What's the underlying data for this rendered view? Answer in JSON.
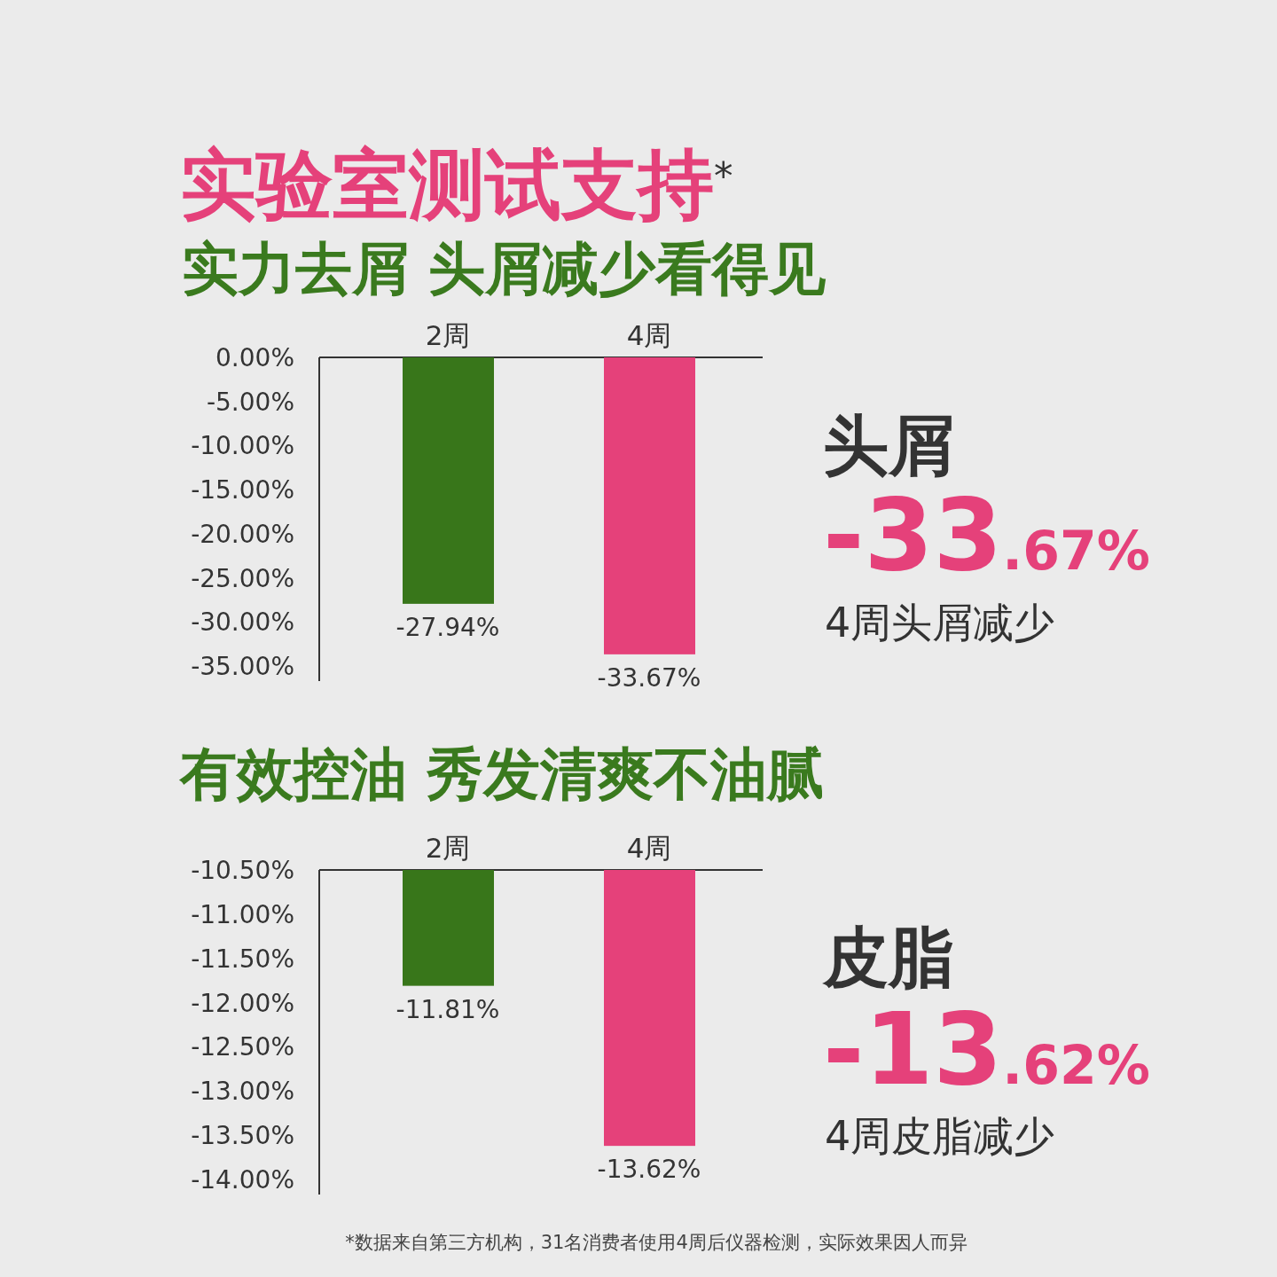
{
  "chart_data": [
    {
      "type": "bar",
      "title": "实验室测试支持$^{*}$",
      "subtitle": "实力去屑 头屑减少看得见",
      "categories": [
        "2周",
        "4周"
      ],
      "values": [
        -27.94,
        -33.67
      ],
      "colors": [
        "#38761a",
        "#e5417a"
      ],
      "value_labels": [
        "-27.94%",
        "-33.67%"
      ],
      "ylim": [
        -36.7,
        0
      ],
      "yticks": [
        {
          "value": 0,
          "label": "0.00%"
        },
        {
          "value": -5,
          "label": "-5.00%"
        },
        {
          "value": -10,
          "label": "-10.00%"
        },
        {
          "value": -15,
          "label": "-15.00%"
        },
        {
          "value": -20,
          "label": "-20.00%"
        },
        {
          "value": -25,
          "label": "-25.00%"
        },
        {
          "value": -30,
          "label": "-30.00%"
        },
        {
          "value": -35,
          "label": "-35.00%"
        }
      ],
      "annotations": [
        "头屑",
        "-33.67%",
        "4周头屑减少"
      ]
    },
    {
      "type": "bar",
      "title": "有效控油 秀发清爽不油腻",
      "categories": [
        "2周",
        "4周"
      ],
      "values": [
        -11.81,
        -13.62
      ],
      "colors": [
        "#38761a",
        "#e5417a"
      ],
      "value_labels": [
        "-11.81%",
        "-13.62%"
      ],
      "ylim": [
        -14.17,
        -10.5
      ],
      "yticks": [
        {
          "value": -10.5,
          "label": "-10.50%"
        },
        {
          "value": -11,
          "label": "-11.00%"
        },
        {
          "value": -11.5,
          "label": "-11.50%"
        },
        {
          "value": -12,
          "label": "-12.00%"
        },
        {
          "value": -12.5,
          "label": "-12.50%"
        },
        {
          "value": -13,
          "label": "-13.00%"
        },
        {
          "value": -13.5,
          "label": "-13.50%"
        },
        {
          "value": -14,
          "label": "-14.00%"
        }
      ],
      "annotations": [
        "皮脂",
        "-13.62%",
        "4周皮脂减少",
        "*数据来自第三方机构，31名消费者使用4周后仪器检测，实际效果因人而异"
      ]
    }
  ]
}
